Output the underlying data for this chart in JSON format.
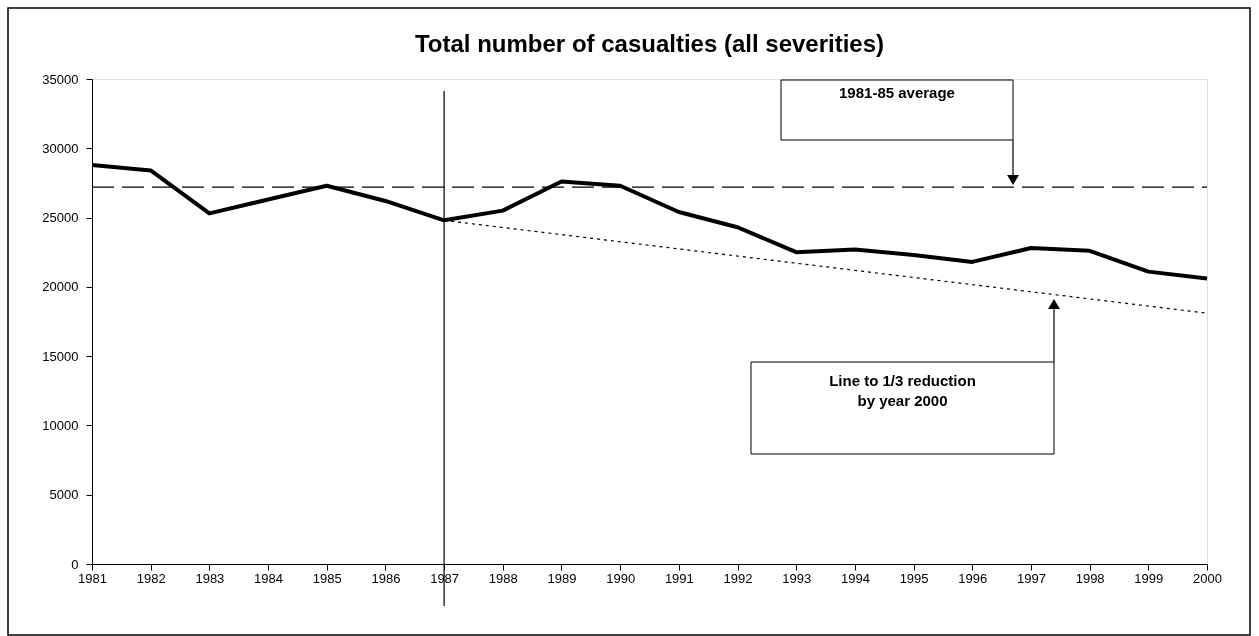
{
  "chart_data": {
    "type": "line",
    "title": "Total number of casualties (all severities)",
    "x": [
      1981,
      1982,
      1983,
      1984,
      1985,
      1986,
      1987,
      1988,
      1989,
      1990,
      1991,
      1992,
      1993,
      1994,
      1995,
      1996,
      1997,
      1998,
      1999,
      2000
    ],
    "series": [
      {
        "color": "#000000",
        "line_style": "solid",
        "values": [
          28800,
          28400,
          25300,
          26300,
          27300,
          26200,
          24800,
          25500,
          27600,
          27300,
          25400,
          24300,
          22500,
          22700,
          22300,
          21800,
          22800,
          22600,
          21100,
          20600
        ]
      },
      {
        "type": "line",
        "color": "#000000",
        "line_style": "dotted",
        "x": [
          1987,
          2000
        ],
        "values": [
          24800,
          18100
        ]
      }
    ],
    "xlim": [
      1981,
      2000
    ],
    "xticks": [
      1981,
      1982,
      1983,
      1984,
      1985,
      1986,
      1987,
      1988,
      1989,
      1990,
      1991,
      1992,
      1993,
      1994,
      1995,
      1996,
      1997,
      1998,
      1999,
      2000
    ],
    "ylim": [
      0,
      35000
    ],
    "yticks": [
      0,
      5000,
      10000,
      15000,
      20000,
      25000,
      30000,
      35000
    ],
    "ref_lines": [
      {
        "axis": "y",
        "value": 27200,
        "color": "#000000",
        "line_style": "dashed"
      },
      {
        "axis": "x",
        "value": 1987,
        "color": "#000000",
        "line_style": "solid"
      }
    ],
    "annotations": [
      "1981-85 average",
      "Line to 1/3 reduction\nby year 2000"
    ],
    "grid": false,
    "marker": "none"
  }
}
